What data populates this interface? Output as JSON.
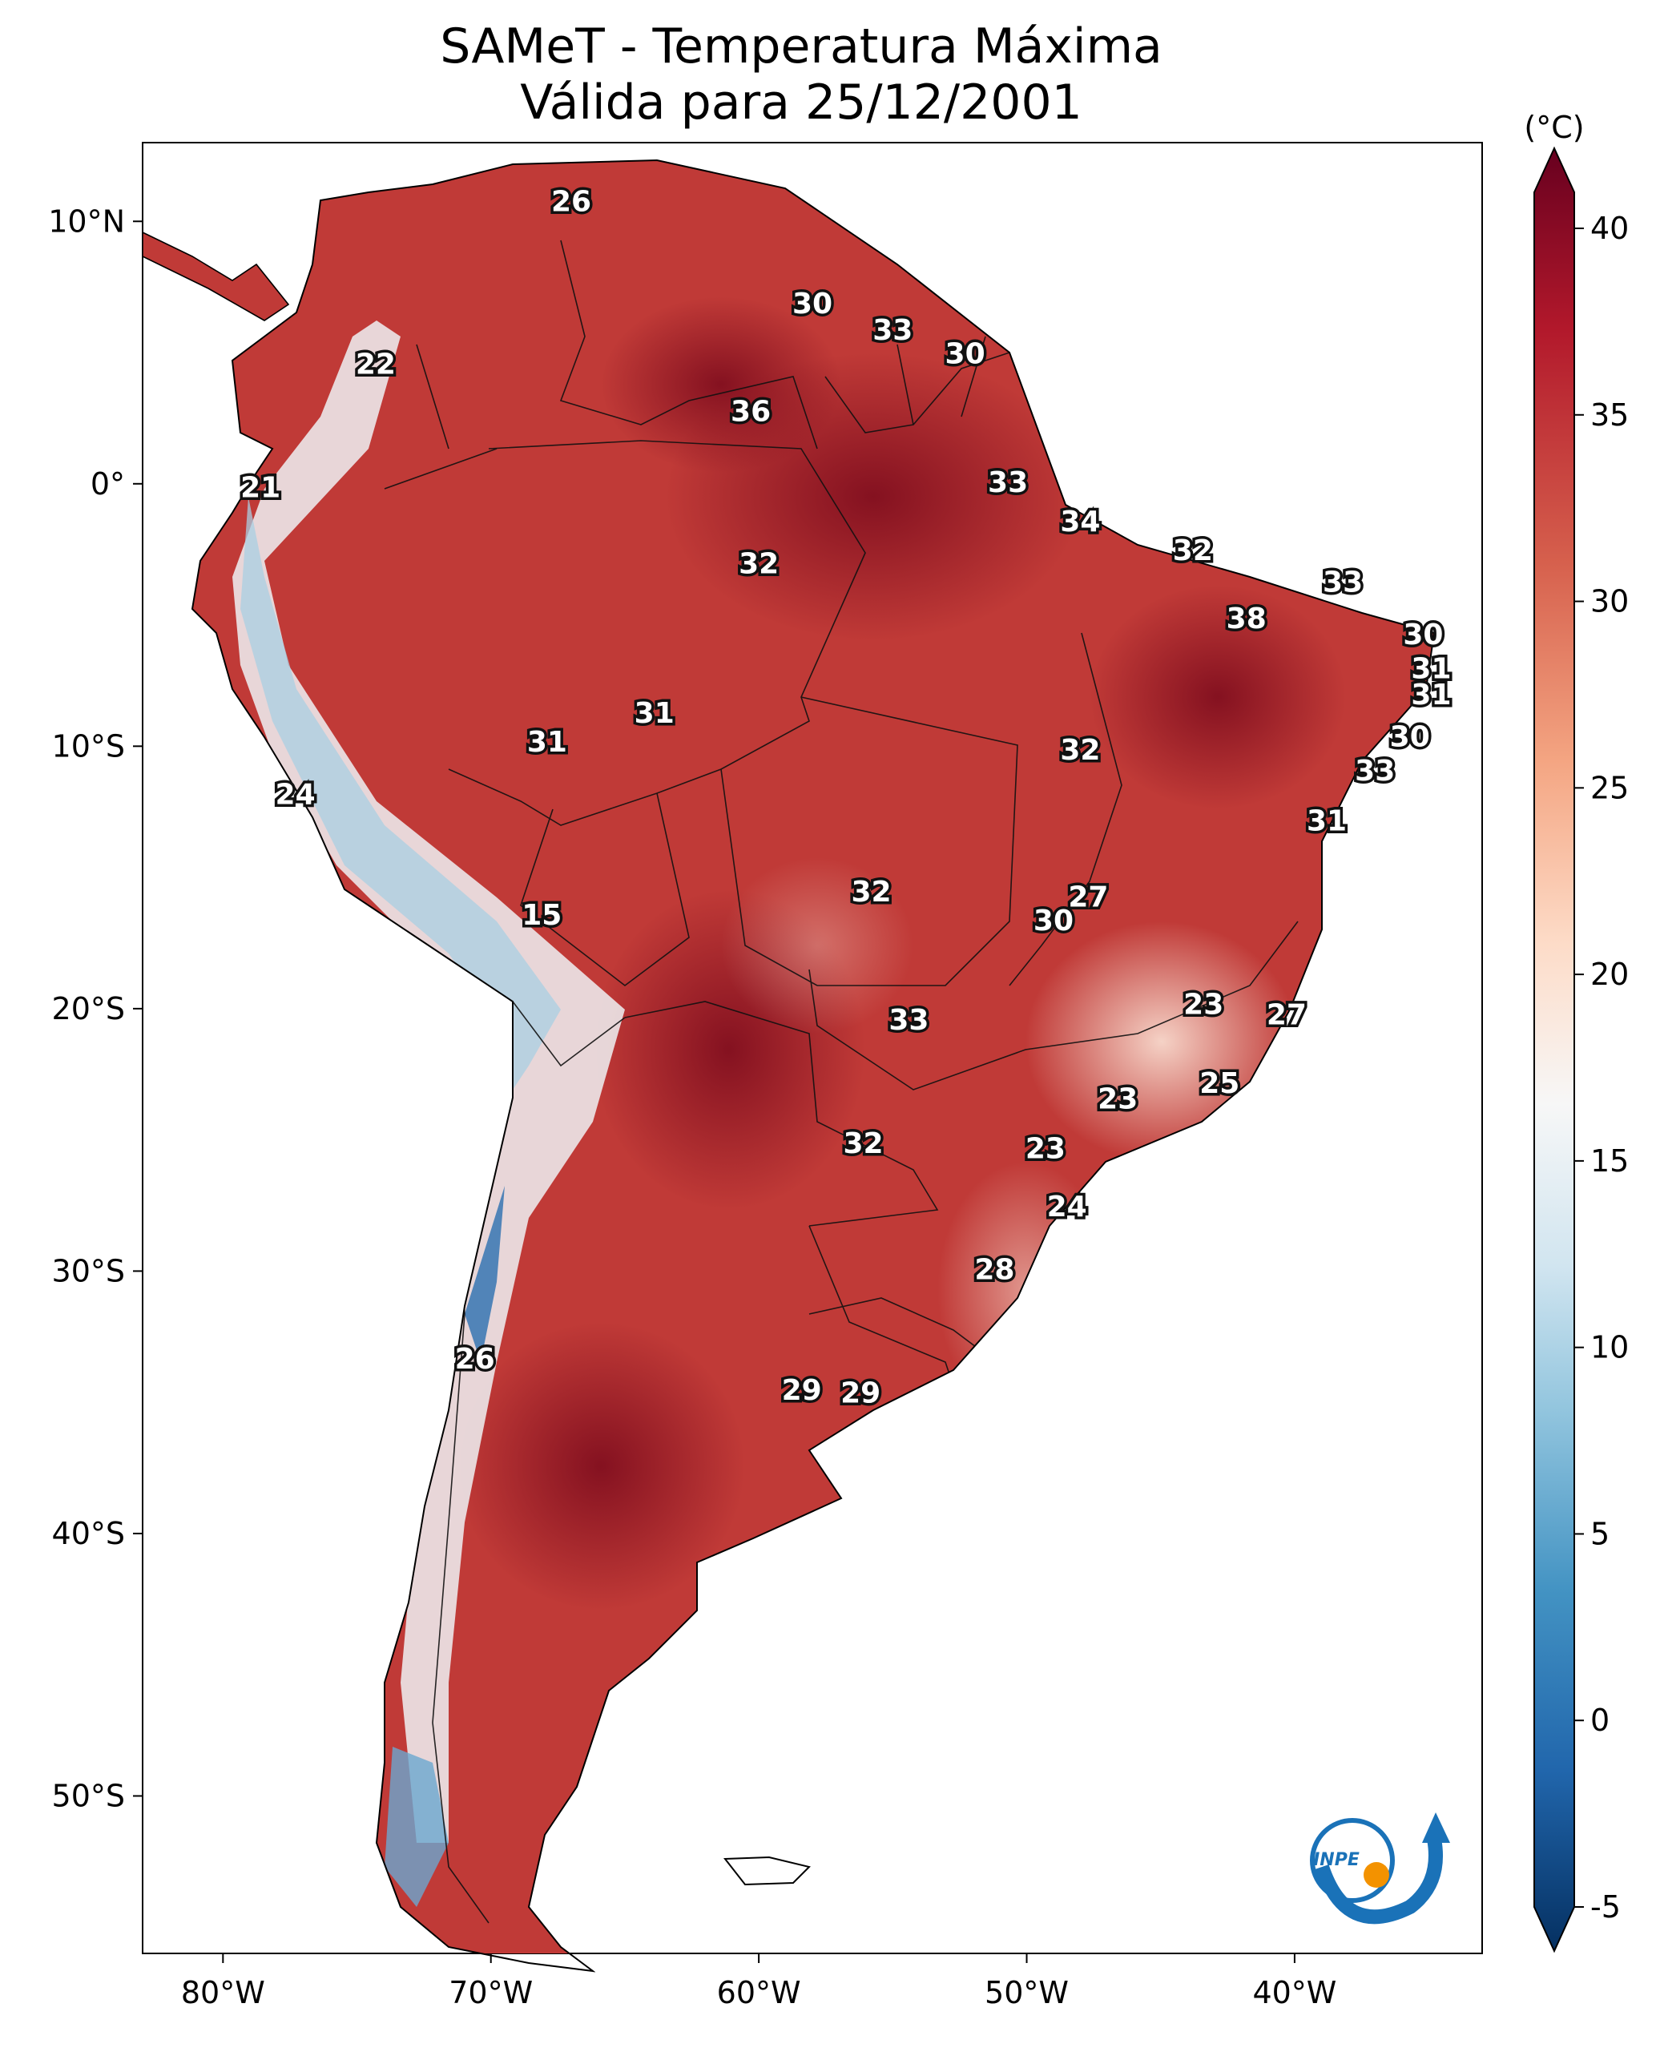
{
  "title": {
    "line1": "SAMeT - Temperatura Máxima",
    "line2": "Válida para 25/12/2001"
  },
  "lon_ticks": [
    {
      "lon": -80,
      "label": "80°W"
    },
    {
      "lon": -70,
      "label": "70°W"
    },
    {
      "lon": -60,
      "label": "60°W"
    },
    {
      "lon": -50,
      "label": "50°W"
    },
    {
      "lon": -40,
      "label": "40°W"
    }
  ],
  "lat_ticks": [
    {
      "lat": 10,
      "label": "10°N"
    },
    {
      "lat": 0,
      "label": "0°"
    },
    {
      "lat": -10,
      "label": "10°S"
    },
    {
      "lat": -20,
      "label": "20°S"
    },
    {
      "lat": -30,
      "label": "30°S"
    },
    {
      "lat": -40,
      "label": "40°S"
    },
    {
      "lat": -50,
      "label": "50°S"
    }
  ],
  "map_extent": {
    "lon_min": -83,
    "lon_max": -33,
    "lat_min": -56,
    "lat_max": 13
  },
  "colorbar": {
    "unit": "(°C)",
    "min": -5,
    "max": 40,
    "ticks": [
      {
        "value": 40,
        "label": "40"
      },
      {
        "value": 35,
        "label": "35"
      },
      {
        "value": 30,
        "label": "30"
      },
      {
        "value": 25,
        "label": "25"
      },
      {
        "value": 20,
        "label": "20"
      },
      {
        "value": 15,
        "label": "15"
      },
      {
        "value": 10,
        "label": "10"
      },
      {
        "value": 5,
        "label": "5"
      },
      {
        "value": 0,
        "label": "0"
      },
      {
        "value": -5,
        "label": "-5"
      }
    ],
    "colors": [
      "#053061",
      "#2166ac",
      "#4393c3",
      "#92c5de",
      "#d1e5f0",
      "#f7f7f7",
      "#fddbc7",
      "#f4a582",
      "#d6604d",
      "#b2182b",
      "#67001f"
    ]
  },
  "temperature_labels": [
    {
      "lon": -67.0,
      "lat": 10.7,
      "value": "26"
    },
    {
      "lon": -74.3,
      "lat": 4.5,
      "value": "22"
    },
    {
      "lon": -78.6,
      "lat": -0.2,
      "value": "21"
    },
    {
      "lon": -58.0,
      "lat": 6.8,
      "value": "30"
    },
    {
      "lon": -55.0,
      "lat": 5.8,
      "value": "33"
    },
    {
      "lon": -52.3,
      "lat": 4.9,
      "value": "30"
    },
    {
      "lon": -60.3,
      "lat": 2.7,
      "value": "36"
    },
    {
      "lon": -50.7,
      "lat": 0.0,
      "value": "33"
    },
    {
      "lon": -48.0,
      "lat": -1.5,
      "value": "34"
    },
    {
      "lon": -43.8,
      "lat": -2.6,
      "value": "32"
    },
    {
      "lon": -60.0,
      "lat": -3.1,
      "value": "32"
    },
    {
      "lon": -38.2,
      "lat": -3.8,
      "value": "33"
    },
    {
      "lon": -41.8,
      "lat": -5.2,
      "value": "38"
    },
    {
      "lon": -35.2,
      "lat": -5.8,
      "value": "30"
    },
    {
      "lon": -34.9,
      "lat": -7.1,
      "value": "31"
    },
    {
      "lon": -34.9,
      "lat": -8.1,
      "value": "31"
    },
    {
      "lon": -63.9,
      "lat": -8.8,
      "value": "31"
    },
    {
      "lon": -67.9,
      "lat": -9.9,
      "value": "31"
    },
    {
      "lon": -35.7,
      "lat": -9.7,
      "value": "30"
    },
    {
      "lon": -48.0,
      "lat": -10.2,
      "value": "32"
    },
    {
      "lon": -37.0,
      "lat": -11.0,
      "value": "33"
    },
    {
      "lon": -77.3,
      "lat": -11.9,
      "value": "24"
    },
    {
      "lon": -38.8,
      "lat": -12.9,
      "value": "31"
    },
    {
      "lon": -55.8,
      "lat": -15.6,
      "value": "32"
    },
    {
      "lon": -47.7,
      "lat": -15.8,
      "value": "27"
    },
    {
      "lon": -49.0,
      "lat": -16.7,
      "value": "30"
    },
    {
      "lon": -68.1,
      "lat": -16.5,
      "value": "15"
    },
    {
      "lon": -43.4,
      "lat": -19.9,
      "value": "23"
    },
    {
      "lon": -54.4,
      "lat": -20.5,
      "value": "33"
    },
    {
      "lon": -40.3,
      "lat": -20.3,
      "value": "27"
    },
    {
      "lon": -42.8,
      "lat": -22.9,
      "value": "25"
    },
    {
      "lon": -46.6,
      "lat": -23.5,
      "value": "23"
    },
    {
      "lon": -49.3,
      "lat": -25.4,
      "value": "23"
    },
    {
      "lon": -56.1,
      "lat": -25.2,
      "value": "32"
    },
    {
      "lon": -48.5,
      "lat": -27.6,
      "value": "24"
    },
    {
      "lon": -51.2,
      "lat": -30.0,
      "value": "28"
    },
    {
      "lon": -70.6,
      "lat": -33.4,
      "value": "26"
    },
    {
      "lon": -58.4,
      "lat": -34.6,
      "value": "29"
    },
    {
      "lon": -56.2,
      "lat": -34.7,
      "value": "29"
    }
  ],
  "logo": {
    "text": "INPE",
    "colors": {
      "blue": "#1a72b8",
      "orange": "#f39200"
    }
  }
}
